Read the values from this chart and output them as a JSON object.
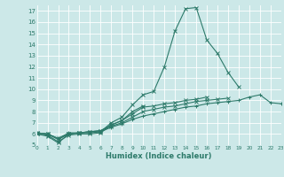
{
  "xlabel": "Humidex (Indice chaleur)",
  "bg_color": "#cce8e8",
  "line_color": "#2d7a6a",
  "grid_color": "#aacccc",
  "xlim": [
    0,
    23
  ],
  "ylim": [
    5,
    17.5
  ],
  "xticks": [
    0,
    1,
    2,
    3,
    4,
    5,
    6,
    7,
    8,
    9,
    10,
    11,
    12,
    13,
    14,
    15,
    16,
    17,
    18,
    19,
    20,
    21,
    22,
    23
  ],
  "yticks": [
    5,
    6,
    7,
    8,
    9,
    10,
    11,
    12,
    13,
    14,
    15,
    16,
    17
  ],
  "lines": [
    {
      "x": [
        0,
        1,
        2,
        3,
        4,
        5,
        6,
        7,
        8,
        9,
        10,
        11,
        12,
        13,
        14,
        15,
        16,
        17,
        18,
        19
      ],
      "y": [
        6.0,
        5.8,
        5.2,
        6.0,
        6.1,
        6.1,
        6.2,
        7.0,
        7.5,
        8.6,
        9.5,
        9.8,
        12.0,
        15.2,
        17.2,
        17.3,
        14.4,
        13.2,
        11.5,
        10.2
      ],
      "marker": "x"
    },
    {
      "x": [
        0,
        1,
        2,
        3,
        4,
        5,
        6,
        7,
        8,
        9,
        10
      ],
      "y": [
        6.0,
        5.9,
        5.3,
        5.9,
        6.0,
        6.0,
        6.1,
        6.8,
        7.2,
        8.0,
        8.5
      ],
      "marker": "x"
    },
    {
      "x": [
        0,
        1,
        2,
        3,
        4,
        5,
        6,
        7,
        8,
        9,
        10,
        11,
        12,
        13,
        14,
        15,
        16
      ],
      "y": [
        6.1,
        6.0,
        5.5,
        6.0,
        6.1,
        6.2,
        6.3,
        6.8,
        7.2,
        7.8,
        8.4,
        8.5,
        8.7,
        8.8,
        9.0,
        9.1,
        9.3
      ],
      "marker": "x"
    },
    {
      "x": [
        0,
        1,
        2,
        3,
        4,
        5,
        6,
        7,
        8,
        9,
        10,
        11,
        12,
        13,
        14,
        15,
        16,
        17,
        18
      ],
      "y": [
        6.1,
        6.0,
        5.6,
        6.0,
        6.1,
        6.2,
        6.3,
        6.7,
        7.0,
        7.5,
        8.0,
        8.2,
        8.4,
        8.5,
        8.7,
        8.9,
        9.0,
        9.1,
        9.2
      ],
      "marker": "x"
    },
    {
      "x": [
        0,
        1,
        2,
        3,
        4,
        5,
        6,
        7,
        8,
        9,
        10,
        11,
        12,
        13,
        14,
        15,
        16,
        17,
        18,
        19,
        20,
        21,
        22,
        23
      ],
      "y": [
        6.1,
        6.0,
        5.6,
        6.1,
        6.1,
        6.2,
        6.2,
        6.6,
        6.9,
        7.3,
        7.6,
        7.8,
        8.0,
        8.2,
        8.4,
        8.5,
        8.7,
        8.8,
        8.9,
        9.0,
        9.3,
        9.5,
        8.8,
        8.7
      ],
      "marker": "+"
    }
  ]
}
